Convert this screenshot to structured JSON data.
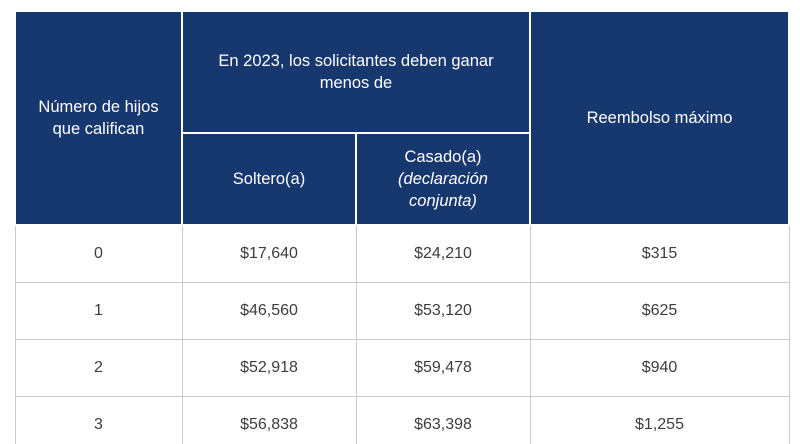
{
  "colors": {
    "header_bg": "#17376f",
    "header_text": "#ffffff",
    "cell_text": "#3d3d3d",
    "grid_border": "#c9c9c9"
  },
  "chart_data": {
    "type": "table",
    "title": "",
    "columns": [
      "Número de hijos que califican",
      "Soltero(a)",
      "Casado(a) (declaración conjunta)",
      "Reembolso máximo"
    ],
    "group_header": "En 2023, los solicitantes deben ganar menos de",
    "rows": [
      {
        "children": "0",
        "single": "$17,640",
        "married": "$24,210",
        "refund": "$315"
      },
      {
        "children": "1",
        "single": "$46,560",
        "married": "$53,120",
        "refund": "$625"
      },
      {
        "children": "2",
        "single": "$52,918",
        "married": "$59,478",
        "refund": "$940"
      },
      {
        "children": "3",
        "single": "$56,838",
        "married": "$63,398",
        "refund": "$1,255"
      }
    ]
  },
  "table": {
    "header": {
      "children": "Número de hijos que califican",
      "earnings_group": "En 2023, los solicitantes deben ganar menos de",
      "single": "Soltero(a)",
      "married": "Casado(a)",
      "married_sub": "(declaración conjunta)",
      "refund": "Reembolso máximo"
    },
    "rows": [
      {
        "children": "0",
        "single": "$17,640",
        "married": "$24,210",
        "refund": "$315"
      },
      {
        "children": "1",
        "single": "$46,560",
        "married": "$53,120",
        "refund": "$625"
      },
      {
        "children": "2",
        "single": "$52,918",
        "married": "$59,478",
        "refund": "$940"
      },
      {
        "children": "3",
        "single": "$56,838",
        "married": "$63,398",
        "refund": "$1,255"
      }
    ]
  }
}
